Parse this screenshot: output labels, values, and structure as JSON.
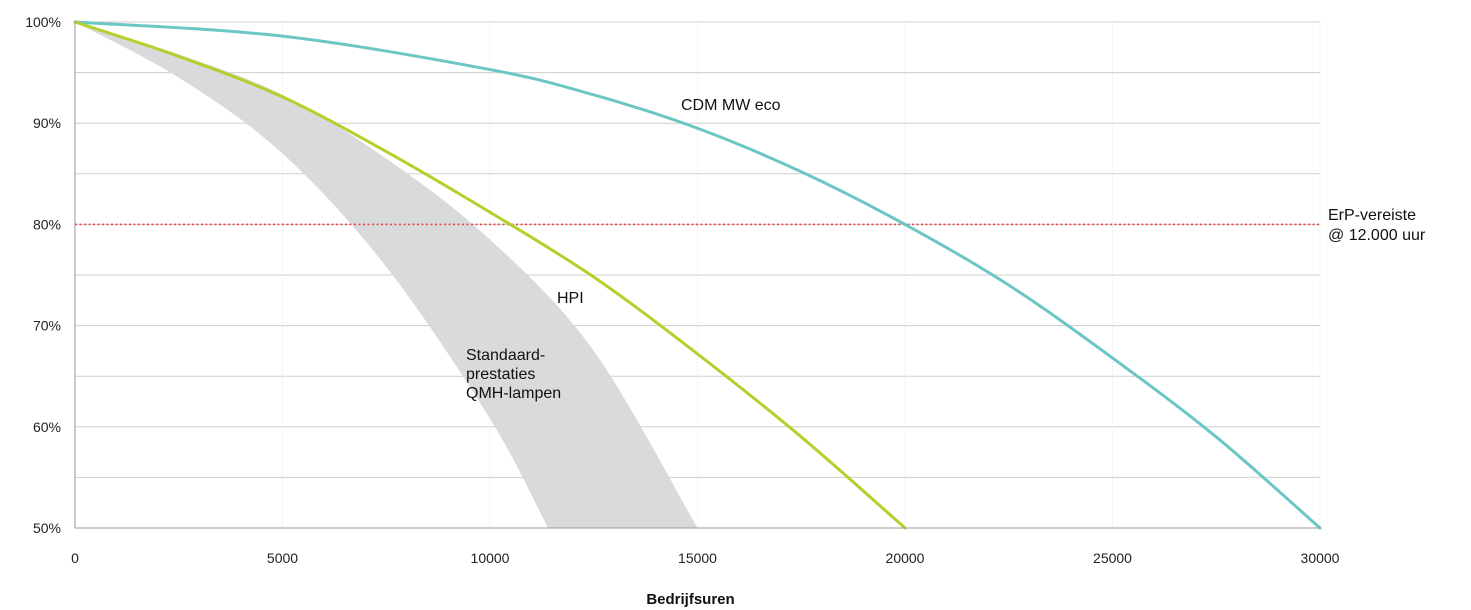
{
  "chart_data": {
    "type": "line",
    "xlabel": "Bedrijfsuren",
    "ylabel": "",
    "xlim": [
      0,
      30000
    ],
    "ylim": [
      50,
      100
    ],
    "x_ticks": [
      0,
      5000,
      10000,
      15000,
      20000,
      25000,
      30000
    ],
    "x_tick_labels": [
      "0",
      "5000",
      "10000",
      "15000",
      "20000",
      "25000",
      "30000"
    ],
    "y_ticks": [
      50,
      60,
      70,
      80,
      90,
      100
    ],
    "y_tick_labels": [
      "50%",
      "60%",
      "70%",
      "80%",
      "90%",
      "100%"
    ],
    "grid": true,
    "series": [
      {
        "name": "CDM MW eco",
        "color": "#6cc7c4",
        "x": [
          0,
          5000,
          10000,
          12500,
          15000,
          17500,
          20000,
          22500,
          25000,
          27500,
          30000
        ],
        "y": [
          100,
          98.6,
          95.3,
          92.8,
          89.5,
          85.2,
          80.0,
          74.0,
          66.8,
          59.0,
          50.0
        ]
      },
      {
        "name": "HPI",
        "color": "#b5cf2c",
        "x": [
          0,
          2500,
          5000,
          7500,
          10000,
          12500,
          15000,
          17500,
          20000
        ],
        "y": [
          100,
          96.6,
          92.6,
          87.2,
          81.2,
          74.8,
          67.2,
          59.0,
          50.0
        ]
      }
    ],
    "band": {
      "name": "Standaard-\nprestaties\nQMH-lampen",
      "label_lines": [
        "Standaard-",
        "prestaties",
        "QMH-lampen"
      ],
      "color": "#d9dadc",
      "upper": {
        "x": [
          0,
          2500,
          5000,
          7500,
          10000,
          12500,
          15000
        ],
        "y": [
          100,
          96.8,
          92.8,
          86.5,
          78.5,
          67.5,
          50.0
        ]
      },
      "lower": {
        "x": [
          0,
          2500,
          5000,
          7500,
          10000,
          11400
        ],
        "y": [
          100,
          94.5,
          87.0,
          75.8,
          60.8,
          50.0
        ]
      }
    },
    "reference_line": {
      "y": 80,
      "color": "#e8453c",
      "label_lines": [
        "ErP-vereiste",
        "@ 12.000 uur"
      ]
    }
  }
}
